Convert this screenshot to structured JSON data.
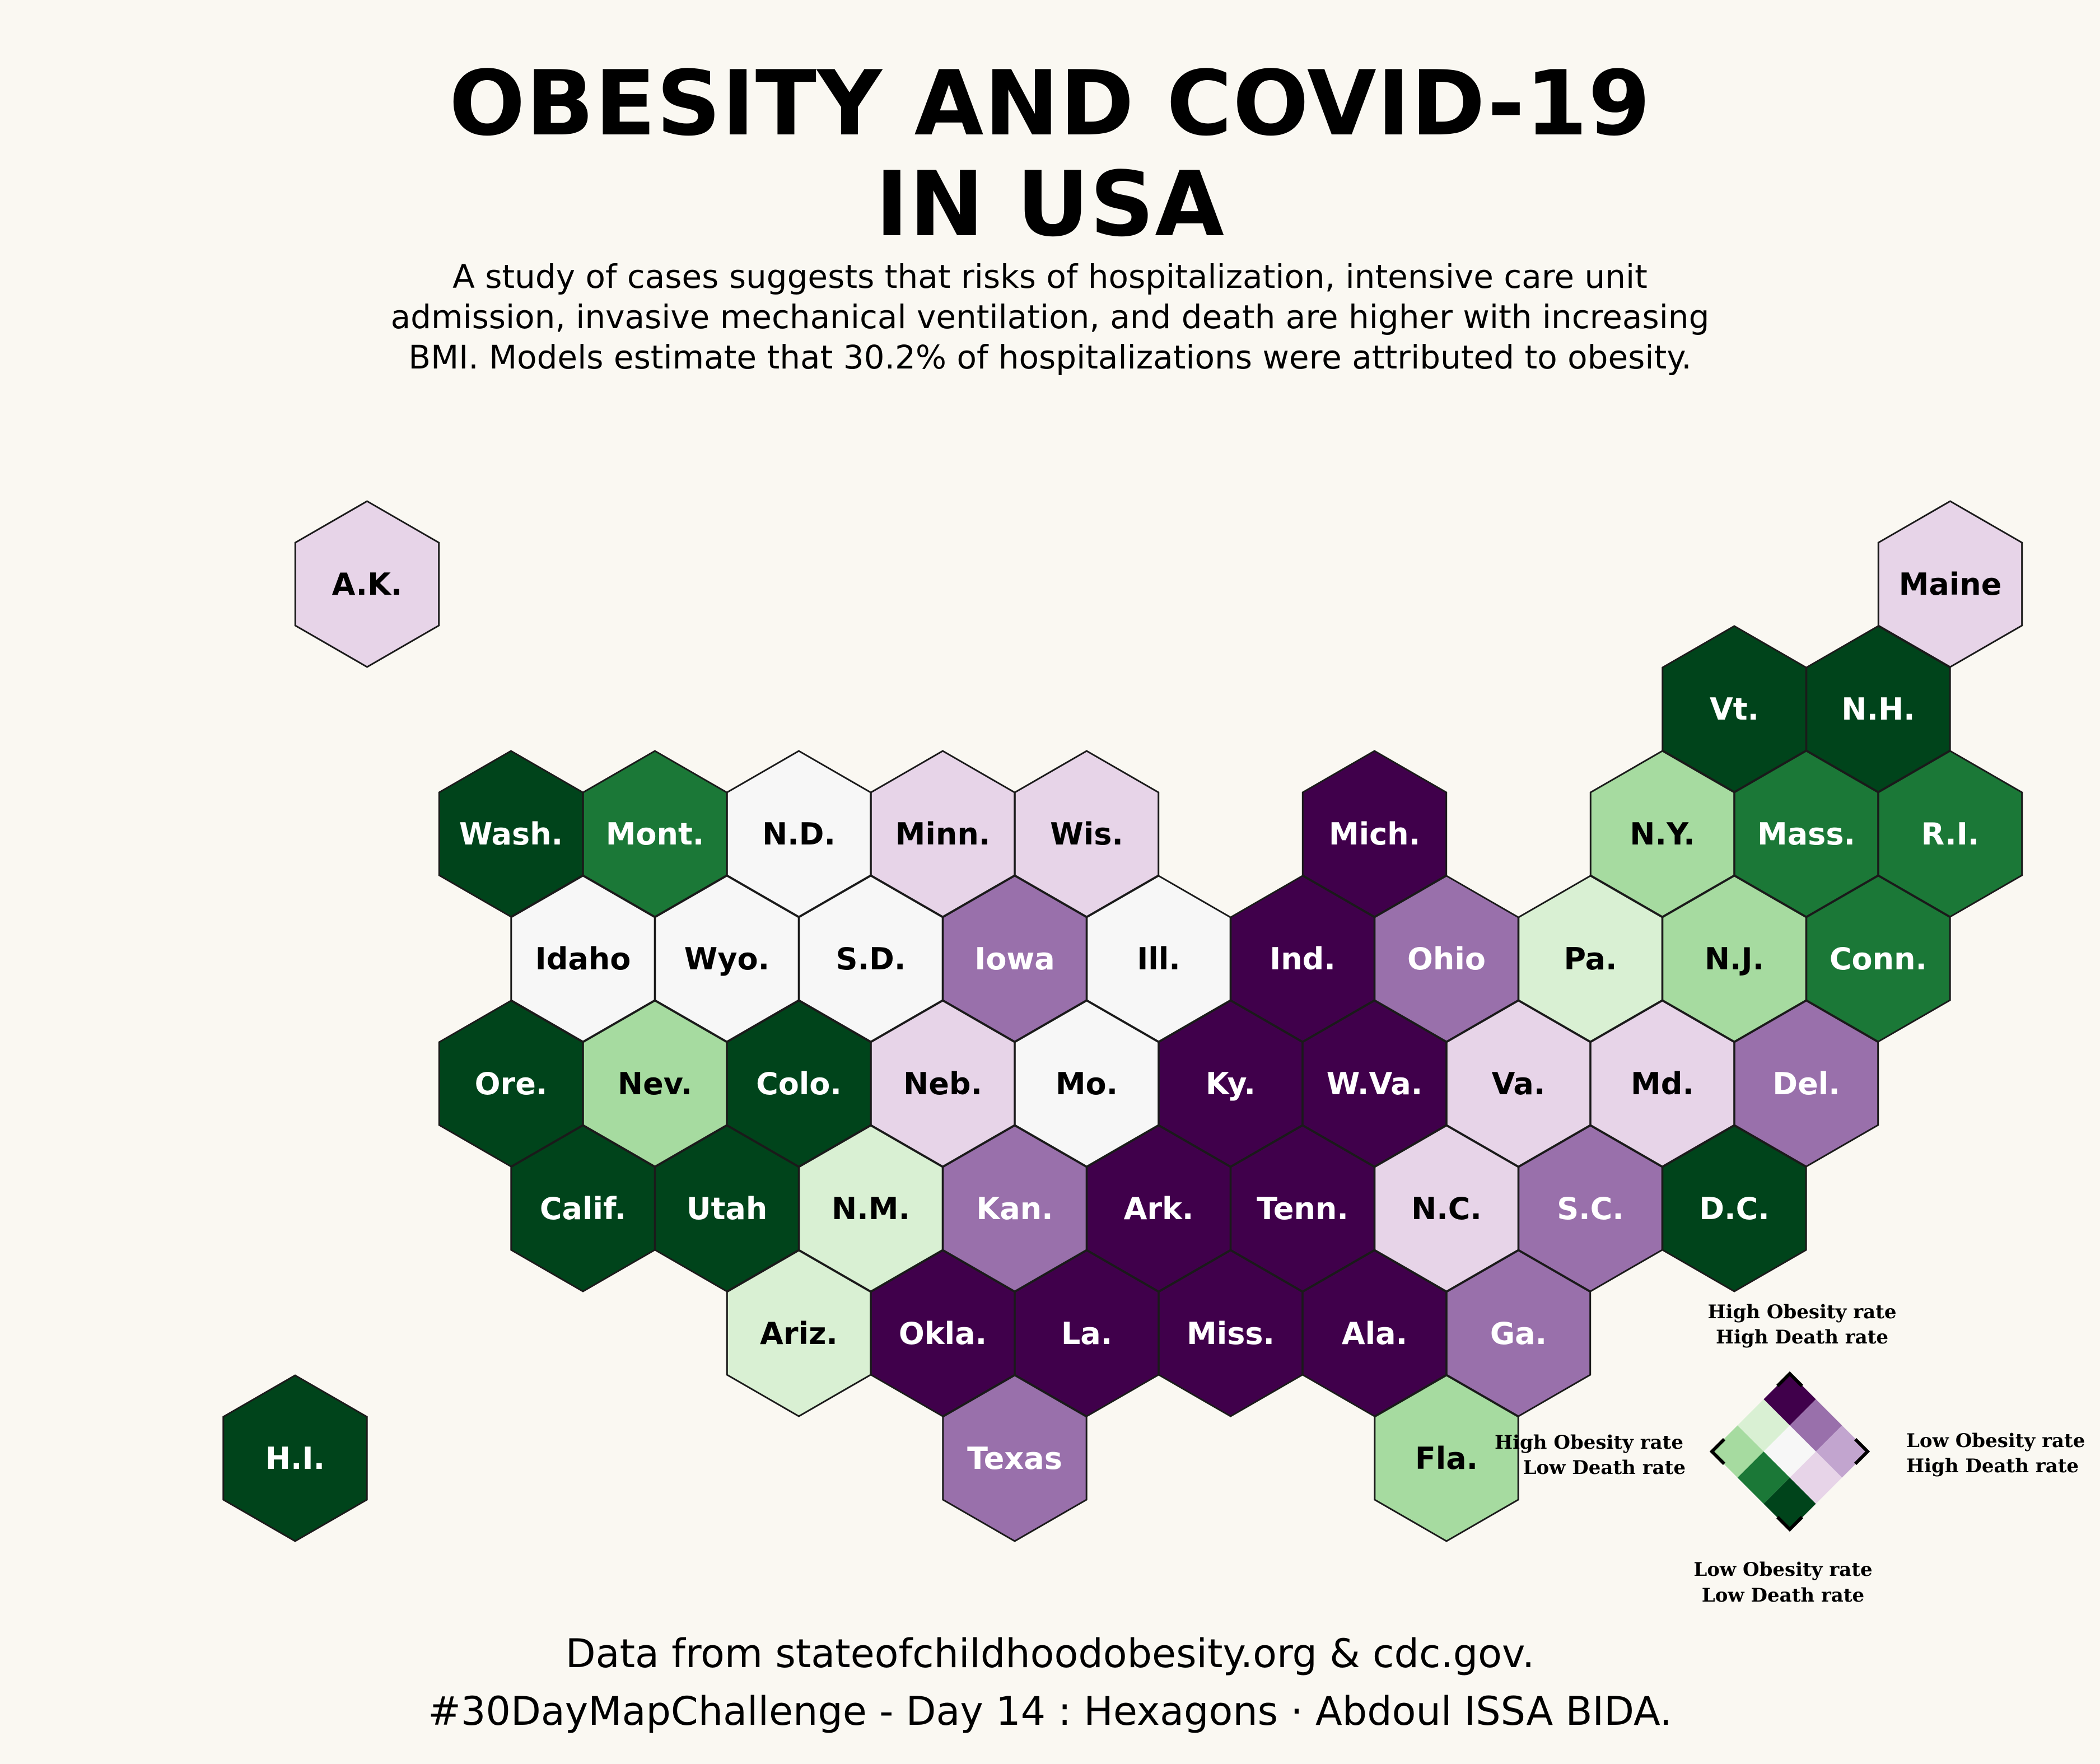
{
  "title": {
    "line1": "OBESITY AND COVID-19",
    "line2": "IN USA"
  },
  "subtitle": {
    "line1": "A study of cases suggests that risks of hospitalization, intensive care unit",
    "line2": "admission, invasive mechanical ventilation, and death are higher with increasing",
    "line3": "BMI. Models estimate that 30.2% of hospitalizations were attributed to obesity."
  },
  "colors": {
    "background": "#faf8f2",
    "obesity_classes": {
      "1": "#00441b",
      "2": "#1b7837",
      "3": "#a6dba0",
      "4": "#d9f0d3",
      "5": "#f7f7f7",
      "6": "#e7d4e8",
      "7": "#9970ab",
      "8": "#40004b"
    },
    "label_dark": "#ffffff",
    "label_light": "#000000"
  },
  "states": [
    {
      "label": "A.K.",
      "row": 0,
      "col": 1.5,
      "bivariate_class": 6
    },
    {
      "label": "Maine",
      "row": 0,
      "col": 12.5,
      "bivariate_class": 6
    },
    {
      "label": "Vt.",
      "row": 1,
      "col": 11,
      "bivariate_class": 1
    },
    {
      "label": "N.H.",
      "row": 1,
      "col": 12,
      "bivariate_class": 1
    },
    {
      "label": "Wash.",
      "row": 2,
      "col": 2.5,
      "bivariate_class": 1
    },
    {
      "label": "Mont.",
      "row": 2,
      "col": 3.5,
      "bivariate_class": 2
    },
    {
      "label": "N.D.",
      "row": 2,
      "col": 4.5,
      "bivariate_class": 5
    },
    {
      "label": "Minn.",
      "row": 2,
      "col": 5.5,
      "bivariate_class": 6
    },
    {
      "label": "Wis.",
      "row": 2,
      "col": 6.5,
      "bivariate_class": 6
    },
    {
      "label": "Mich.",
      "row": 2,
      "col": 8.5,
      "bivariate_class": 8
    },
    {
      "label": "N.Y.",
      "row": 2,
      "col": 10.5,
      "bivariate_class": 3
    },
    {
      "label": "Mass.",
      "row": 2,
      "col": 11.5,
      "bivariate_class": 2
    },
    {
      "label": "R.I.",
      "row": 2,
      "col": 12.5,
      "bivariate_class": 2
    },
    {
      "label": "Idaho",
      "row": 3,
      "col": 3,
      "bivariate_class": 5
    },
    {
      "label": "Wyo.",
      "row": 3,
      "col": 4,
      "bivariate_class": 5
    },
    {
      "label": "S.D.",
      "row": 3,
      "col": 5,
      "bivariate_class": 5
    },
    {
      "label": "Iowa",
      "row": 3,
      "col": 6,
      "bivariate_class": 7
    },
    {
      "label": "Ill.",
      "row": 3,
      "col": 7,
      "bivariate_class": 5
    },
    {
      "label": "Ind.",
      "row": 3,
      "col": 8,
      "bivariate_class": 8
    },
    {
      "label": "Ohio",
      "row": 3,
      "col": 9,
      "bivariate_class": 7
    },
    {
      "label": "Pa.",
      "row": 3,
      "col": 10,
      "bivariate_class": 4
    },
    {
      "label": "N.J.",
      "row": 3,
      "col": 11,
      "bivariate_class": 3
    },
    {
      "label": "Conn.",
      "row": 3,
      "col": 12,
      "bivariate_class": 2
    },
    {
      "label": "Ore.",
      "row": 4,
      "col": 2.5,
      "bivariate_class": 1
    },
    {
      "label": "Nev.",
      "row": 4,
      "col": 3.5,
      "bivariate_class": 3
    },
    {
      "label": "Colo.",
      "row": 4,
      "col": 4.5,
      "bivariate_class": 1
    },
    {
      "label": "Neb.",
      "row": 4,
      "col": 5.5,
      "bivariate_class": 6
    },
    {
      "label": "Mo.",
      "row": 4,
      "col": 6.5,
      "bivariate_class": 5
    },
    {
      "label": "Ky.",
      "row": 4,
      "col": 7.5,
      "bivariate_class": 8
    },
    {
      "label": "W.Va.",
      "row": 4,
      "col": 8.5,
      "bivariate_class": 8
    },
    {
      "label": "Va.",
      "row": 4,
      "col": 9.5,
      "bivariate_class": 6
    },
    {
      "label": "Md.",
      "row": 4,
      "col": 10.5,
      "bivariate_class": 6
    },
    {
      "label": "Del.",
      "row": 4,
      "col": 11.5,
      "bivariate_class": 7
    },
    {
      "label": "Calif.",
      "row": 5,
      "col": 3,
      "bivariate_class": 1
    },
    {
      "label": "Utah",
      "row": 5,
      "col": 4,
      "bivariate_class": 1
    },
    {
      "label": "N.M.",
      "row": 5,
      "col": 5,
      "bivariate_class": 4
    },
    {
      "label": "Kan.",
      "row": 5,
      "col": 6,
      "bivariate_class": 7
    },
    {
      "label": "Ark.",
      "row": 5,
      "col": 7,
      "bivariate_class": 8
    },
    {
      "label": "Tenn.",
      "row": 5,
      "col": 8,
      "bivariate_class": 8
    },
    {
      "label": "N.C.",
      "row": 5,
      "col": 9,
      "bivariate_class": 6
    },
    {
      "label": "S.C.",
      "row": 5,
      "col": 10,
      "bivariate_class": 7
    },
    {
      "label": "D.C.",
      "row": 5,
      "col": 11,
      "bivariate_class": 1
    },
    {
      "label": "Ariz.",
      "row": 6,
      "col": 4.5,
      "bivariate_class": 4
    },
    {
      "label": "Okla.",
      "row": 6,
      "col": 5.5,
      "bivariate_class": 8
    },
    {
      "label": "La.",
      "row": 6,
      "col": 6.5,
      "bivariate_class": 8
    },
    {
      "label": "Miss.",
      "row": 6,
      "col": 7.5,
      "bivariate_class": 8
    },
    {
      "label": "Ala.",
      "row": 6,
      "col": 8.5,
      "bivariate_class": 8
    },
    {
      "label": "Ga.",
      "row": 6,
      "col": 9.5,
      "bivariate_class": 7
    },
    {
      "label": "H.I.",
      "row": 7,
      "col": 1,
      "bivariate_class": 1
    },
    {
      "label": "Texas",
      "row": 7,
      "col": 6,
      "bivariate_class": 7
    },
    {
      "label": "Fla.",
      "row": 7,
      "col": 9,
      "bivariate_class": 3
    }
  ],
  "legend": {
    "top_label": {
      "line1": "High Obesity rate",
      "line2": "High Death rate"
    },
    "left_label": {
      "line1": "High Obesity rate",
      "line2": "Low Death rate"
    },
    "right_label": {
      "line1": "Low Obesity rate",
      "line2": "High Death rate"
    },
    "bottom_label": {
      "line1": "Low Obesity rate",
      "line2": "Low Death rate"
    },
    "grid": [
      [
        "#40004b",
        "#9970ab",
        "#c2a5cf"
      ],
      [
        "#d9f0d3",
        "#f7f7f7",
        "#e7d4e8"
      ],
      [
        "#a6dba0",
        "#1b7837",
        "#00441b"
      ]
    ]
  },
  "footer": {
    "line1": "Data from stateofchildhoodobesity.org & cdc.gov.",
    "line2": "#30DayMapChallenge - Day 14 : Hexagons · Abdoul ISSA BIDA."
  }
}
